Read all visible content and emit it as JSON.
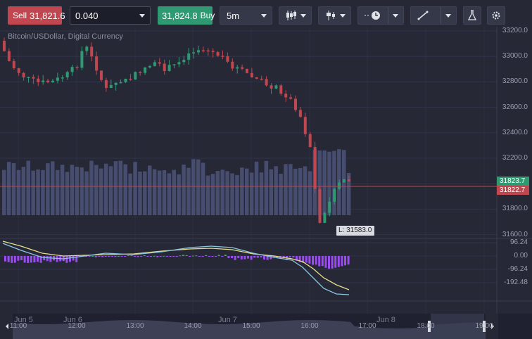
{
  "toolbar": {
    "sell_label": "Sell",
    "sell_price": "31,821.6",
    "quantity": "0.040",
    "buy_price": "31,824.8",
    "buy_label": "Buy",
    "timeframe": "5m",
    "chart_type_icon": "candlestick-icon",
    "indicators_icon": "indicators-icon",
    "clock_icon": "clock-icon",
    "draw_icon": "trendline-icon",
    "flask_icon": "flask-icon",
    "settings_icon": "gear-icon"
  },
  "chart": {
    "title": "Bitcoin/USDollar, Digital Currency",
    "price_axis": [
      "33200.0",
      "33000.0",
      "32800.0",
      "32600.0",
      "32400.0",
      "32200.0",
      "32000.0",
      "31800.0",
      "31600.0"
    ],
    "osc_axis": [
      "96.24",
      "0.00",
      "-96.24",
      "-192.48"
    ],
    "time_axis": [
      "11:00",
      "12:00",
      "13:00",
      "14:00",
      "15:00",
      "16:00",
      "17:00",
      "18:00",
      "19:00"
    ],
    "ask_tag": "31823.7",
    "bid_tag": "31822.7",
    "low_label": "L: 31583.0",
    "colors": {
      "up": "#2f9a72",
      "down": "#c0474f",
      "volume": "#4c5479",
      "macd_hist": "#9b4cf0",
      "macd_line": "#8cc7e0",
      "signal_line": "#e6de8a"
    }
  },
  "navigator": {
    "labels": [
      "Jun 5",
      "Jun 6",
      "Jun 7",
      "Jun 8"
    ]
  }
}
